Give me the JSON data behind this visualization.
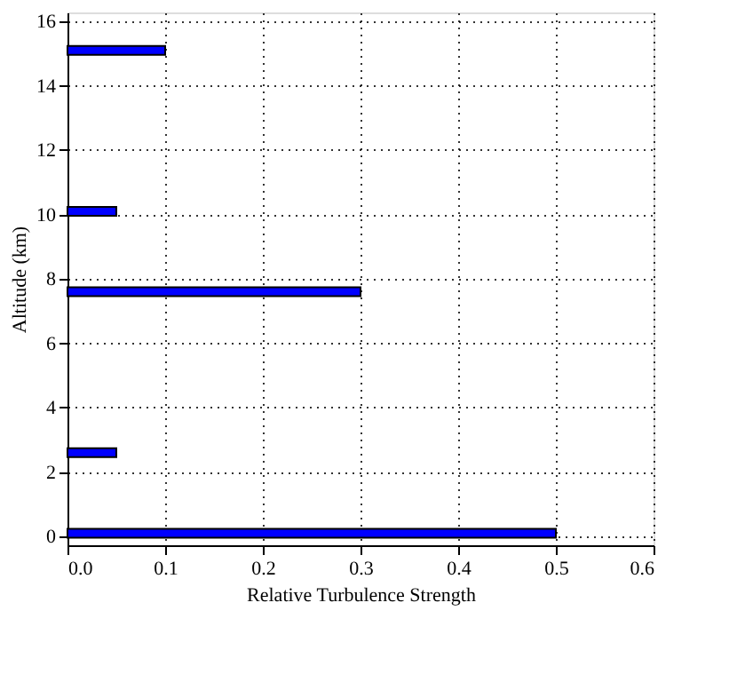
{
  "chart_data": {
    "type": "bar",
    "orientation": "horizontal",
    "xlabel": "Relative Turbulence Strength",
    "ylabel": "Altitude (km)",
    "x": [
      0.1,
      2.6,
      7.6,
      10.1,
      15.1
    ],
    "series": [
      {
        "color": "#0000ff",
        "values": [
          0.5,
          0.05,
          0.3,
          0.05,
          0.1
        ]
      }
    ],
    "xlim": [
      0,
      0.6
    ],
    "xticks": [
      {
        "value": 0,
        "label": "0.0"
      },
      0.1,
      0.2,
      0.3,
      0.4,
      0.5,
      0.6
    ],
    "ylim": [
      0,
      16
    ],
    "yticks": [
      0,
      2,
      4,
      6,
      8,
      10,
      12,
      14,
      16
    ],
    "grid": true
  }
}
